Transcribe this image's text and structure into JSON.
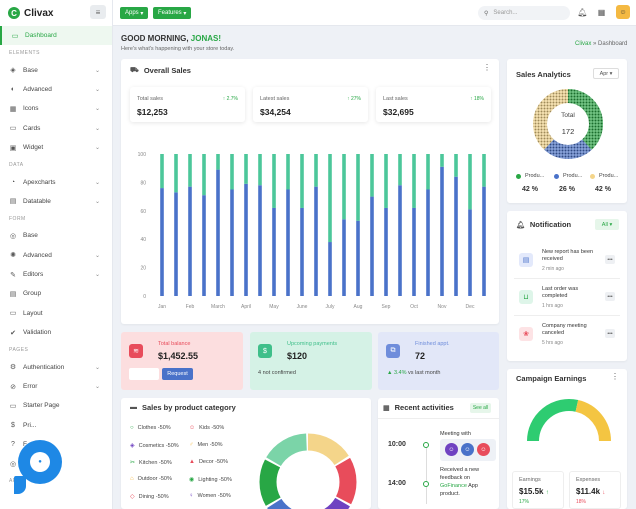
{
  "app": {
    "name": "Clivax",
    "logo_letter": "C"
  },
  "topbar": {
    "apps_label": "Apps",
    "features_label": "Features",
    "search_placeholder": "Search...",
    "menu_icon": "≡"
  },
  "sidebar": {
    "items": [
      {
        "label": "Dashboard",
        "icon": "monitor-icon",
        "glyph": "▭",
        "active": true
      },
      {
        "section": "ELEMENTS"
      },
      {
        "label": "Base",
        "icon": "cube-icon",
        "glyph": "◈",
        "chevron": true
      },
      {
        "label": "Advanced",
        "icon": "half-circle-icon",
        "glyph": "◐",
        "chevron": true
      },
      {
        "label": "Icons",
        "icon": "grid-icon",
        "glyph": "▦",
        "chevron": true
      },
      {
        "label": "Cards",
        "icon": "card-icon",
        "glyph": "▭",
        "chevron": true
      },
      {
        "label": "Widget",
        "icon": "widget-icon",
        "glyph": "▣",
        "chevron": true
      },
      {
        "section": "DATA"
      },
      {
        "label": "Apexcharts",
        "icon": "chart-icon",
        "glyph": "◔",
        "chevron": true
      },
      {
        "label": "Datatable",
        "icon": "table-icon",
        "glyph": "▤",
        "chevron": true
      },
      {
        "section": "FORM"
      },
      {
        "label": "Base",
        "icon": "form-icon",
        "glyph": "◎"
      },
      {
        "label": "Advanced",
        "icon": "settings-icon",
        "glyph": "✺",
        "chevron": true
      },
      {
        "label": "Editors",
        "icon": "editor-icon",
        "glyph": "✎",
        "chevron": true
      },
      {
        "label": "Group",
        "icon": "group-icon",
        "glyph": "▤"
      },
      {
        "label": "Layout",
        "icon": "layout-icon",
        "glyph": "▭"
      },
      {
        "label": "Validation",
        "icon": "check-icon",
        "glyph": "✔"
      },
      {
        "section": "PAGES"
      },
      {
        "label": "Authentication",
        "icon": "lock-icon",
        "glyph": "⚙",
        "chevron": true
      },
      {
        "label": "Error",
        "icon": "error-icon",
        "glyph": "⊘",
        "chevron": true
      },
      {
        "label": "Starter Page",
        "icon": "page-icon",
        "glyph": "▭"
      },
      {
        "label": "Pri...",
        "icon": "dollar-icon",
        "glyph": "$"
      },
      {
        "label": "F...",
        "icon": "question-icon",
        "glyph": "?"
      },
      {
        "label": "...on",
        "icon": "globe-icon",
        "glyph": "◎"
      },
      {
        "section": "APPS"
      }
    ]
  },
  "header": {
    "greeting": "GOOD MORNING, ",
    "name": "JONAS!",
    "subtitle": "Here's what's happening with your store today.",
    "breadcrumb_root": "Clivax",
    "breadcrumb_sep": "»",
    "breadcrumb_current": "Dashboard"
  },
  "overall_sales": {
    "title": "Overall Sales",
    "stats": [
      {
        "label": "Total sales",
        "value": "$12,253",
        "change": "↑ 2.7%"
      },
      {
        "label": "Latest sales",
        "value": "$34,254",
        "change": "↑ 27%"
      },
      {
        "label": "Last sales",
        "value": "$32,695",
        "change": "↑ 18%"
      }
    ]
  },
  "chart_data": {
    "type": "bar",
    "stacked": true,
    "categories": [
      "Jan",
      "",
      "Feb",
      "",
      "March",
      "",
      "April",
      "",
      "May",
      "",
      "June",
      "",
      "July",
      "",
      "Aug",
      "",
      "Sep",
      "",
      "Oct",
      "",
      "Nov",
      "",
      "Dec",
      ""
    ],
    "series": [
      {
        "values": [
          76,
          73,
          77,
          71,
          89,
          75,
          79,
          78,
          62,
          75,
          62,
          77,
          38,
          54,
          53,
          70,
          62,
          78,
          62,
          75,
          91,
          84,
          61,
          77
        ]
      },
      {
        "values": [
          24,
          27,
          23,
          29,
          11,
          25,
          21,
          22,
          38,
          25,
          38,
          23,
          62,
          46,
          47,
          30,
          38,
          22,
          38,
          25,
          9,
          16,
          39,
          23
        ]
      }
    ],
    "colors": [
      "#4a72c9",
      "#4cc79a"
    ],
    "yticks": [
      0,
      20,
      40,
      60,
      80,
      100
    ],
    "ylim": [
      0,
      100
    ],
    "grid": false
  },
  "tiles": [
    {
      "label": "Total balance",
      "value": "$1,452.55",
      "button": "Request",
      "icon": "layers-icon",
      "glyph": "≋"
    },
    {
      "label": "Upcoming payments",
      "value": "$120",
      "note": "4 not confirmed",
      "icon": "money-icon",
      "glyph": "$"
    },
    {
      "label": "Finished appt.",
      "value": "72",
      "change": "▲ 3.4%",
      "note": "vs last month",
      "icon": "network-icon",
      "glyph": "⧉"
    }
  ],
  "sales_category": {
    "title": "Sales by product category",
    "items": [
      {
        "label": "Clothes -50%",
        "icon": "clothes-icon",
        "glyph": "○",
        "color": "#28a745"
      },
      {
        "label": "Kids -50%",
        "icon": "kids-icon",
        "glyph": "☺",
        "color": "#e84c5b"
      },
      {
        "label": "Cosmetics -50%",
        "icon": "cosmetics-icon",
        "glyph": "◈",
        "color": "#6f42c1"
      },
      {
        "label": "Men -50%",
        "icon": "men-icon",
        "glyph": "♂",
        "color": "#f4b942"
      },
      {
        "label": "Kitchen -50%",
        "icon": "kitchen-icon",
        "glyph": "✂",
        "color": "#28a745"
      },
      {
        "label": "Decor -50%",
        "icon": "decor-icon",
        "glyph": "▲",
        "color": "#e84c5b"
      },
      {
        "label": "Outdoor -50%",
        "icon": "outdoor-icon",
        "glyph": "⌂",
        "color": "#f4b942"
      },
      {
        "label": "Lighting -50%",
        "icon": "lighting-icon",
        "glyph": "◉",
        "color": "#28a745"
      },
      {
        "label": "Dining -50%",
        "icon": "dining-icon",
        "glyph": "◇",
        "color": "#e84c5b"
      },
      {
        "label": "Women -50%",
        "icon": "women-icon",
        "glyph": "♀",
        "color": "#6f42c1"
      }
    ]
  },
  "recent_activities": {
    "title": "Recent activities",
    "see_all": "See all",
    "events": [
      {
        "time": "10:00",
        "text": "Meeting with"
      },
      {
        "time": "14:00",
        "text_before": "Received a new feedback on ",
        "link": "GoFinance",
        "text_after": " App product."
      }
    ]
  },
  "sales_analytics": {
    "title": "Sales Analytics",
    "period": "Apr",
    "center_label": "Total",
    "center_value": "172",
    "legend": [
      {
        "label": "Produ...",
        "color": "#28a745",
        "pct": "42 %",
        "value": 42
      },
      {
        "label": "Produ...",
        "color": "#4a72c9",
        "pct": "26 %",
        "value": 26
      },
      {
        "label": "Produ...",
        "color": "#f4d58a",
        "pct": "42 %",
        "value": 42
      }
    ]
  },
  "notification": {
    "title": "Notification",
    "filter": "All",
    "items": [
      {
        "title": "New report has been received",
        "time": "2 min ago",
        "icon": "file-icon",
        "glyph": "▤",
        "bg": "#e3e9fb",
        "fg": "#4a72c9"
      },
      {
        "title": "Last order was completed",
        "time": "1 hrs ago",
        "icon": "basket-icon",
        "glyph": "⊔",
        "bg": "#def5e9",
        "fg": "#28a745"
      },
      {
        "title": "Company meeting canceled",
        "time": "5 hrs ago",
        "icon": "users-icon",
        "glyph": "❀",
        "bg": "#fde3e5",
        "fg": "#e84c5b"
      }
    ]
  },
  "campaign": {
    "title": "Campaign Earnings",
    "gauge": {
      "value": 57
    },
    "earnings_label": "Earnings",
    "earnings_value": "$15.5k",
    "earnings_change": "17%",
    "expenses_label": "Expenses",
    "expenses_value": "$11.4k",
    "expenses_change": "18%"
  }
}
